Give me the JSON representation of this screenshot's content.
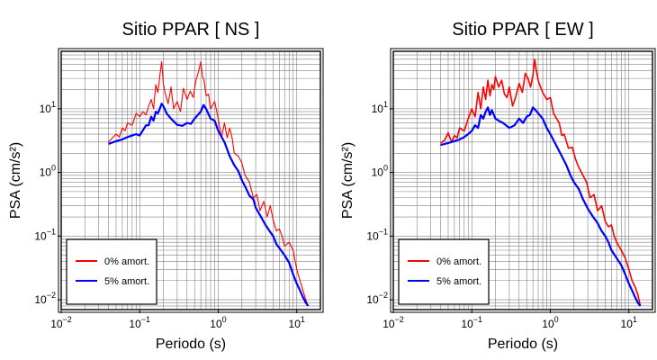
{
  "chart_data": [
    {
      "type": "line",
      "title": "Sitio PPAR [ NS ]",
      "xlabel": "Periodo (s)",
      "ylabel": "PSA (cm/s²)",
      "xscale": "log",
      "yscale": "log",
      "xlim": [
        0.01,
        20
      ],
      "ylim": [
        0.007,
        80
      ],
      "xticks": [
        {
          "base": "10",
          "exp": "−2",
          "v": 0.01
        },
        {
          "base": "10",
          "exp": "−1",
          "v": 0.1
        },
        {
          "base": "10",
          "exp": "0",
          "v": 1
        },
        {
          "base": "10",
          "exp": "1",
          "v": 10
        }
      ],
      "yticks": [
        {
          "base": "10",
          "exp": "−2",
          "v": 0.01
        },
        {
          "base": "10",
          "exp": "−1",
          "v": 0.1
        },
        {
          "base": "10",
          "exp": "0",
          "v": 1
        },
        {
          "base": "10",
          "exp": "1",
          "v": 10
        }
      ],
      "grid": true,
      "legend_position": "bottom-left",
      "series": [
        {
          "name": "0% amort.",
          "color": "#ff0000",
          "x": [
            0.04,
            0.05,
            0.055,
            0.06,
            0.065,
            0.07,
            0.08,
            0.09,
            0.1,
            0.11,
            0.12,
            0.13,
            0.14,
            0.15,
            0.16,
            0.17,
            0.18,
            0.19,
            0.2,
            0.21,
            0.23,
            0.25,
            0.27,
            0.3,
            0.33,
            0.36,
            0.4,
            0.44,
            0.48,
            0.52,
            0.56,
            0.6,
            0.63,
            0.66,
            0.7,
            0.75,
            0.8,
            0.9,
            1.0,
            1.1,
            1.2,
            1.3,
            1.4,
            1.5,
            1.6,
            1.8,
            2.0,
            2.2,
            2.5,
            2.8,
            3.1,
            3.4,
            3.8,
            4.2,
            4.6,
            5.0,
            5.5,
            6.0,
            6.5,
            7.0,
            8.0,
            9.0,
            10.0,
            11.0,
            12.0,
            13.0,
            14.0
          ],
          "y": [
            3.0,
            4.0,
            3.6,
            5.0,
            4.5,
            6.0,
            5.5,
            8.5,
            7.5,
            9.0,
            8.0,
            11.0,
            14.0,
            10.0,
            24.0,
            18.0,
            32.0,
            55.0,
            25.0,
            18.0,
            12.0,
            22.0,
            10.0,
            13.0,
            9.0,
            21.0,
            14.0,
            19.0,
            15.0,
            28.0,
            38.0,
            55.0,
            32.0,
            28.0,
            16.0,
            17.0,
            10.0,
            13.0,
            7.0,
            3.5,
            6.0,
            3.5,
            5.0,
            3.5,
            2.0,
            1.8,
            1.4,
            0.9,
            0.7,
            0.4,
            0.45,
            0.25,
            0.35,
            0.2,
            0.3,
            0.18,
            0.12,
            0.13,
            0.1,
            0.07,
            0.08,
            0.06,
            0.03,
            0.02,
            0.014,
            0.01,
            0.008
          ]
        },
        {
          "name": "5% amort.",
          "color": "#0000ff",
          "x": [
            0.04,
            0.05,
            0.06,
            0.07,
            0.08,
            0.09,
            0.1,
            0.11,
            0.12,
            0.13,
            0.14,
            0.15,
            0.16,
            0.17,
            0.18,
            0.19,
            0.2,
            0.22,
            0.25,
            0.3,
            0.35,
            0.4,
            0.45,
            0.5,
            0.55,
            0.6,
            0.65,
            0.7,
            0.8,
            0.9,
            1.0,
            1.2,
            1.4,
            1.6,
            1.8,
            2.0,
            2.2,
            2.5,
            2.8,
            3.0,
            3.5,
            4.0,
            4.5,
            5.0,
            5.5,
            6.0,
            7.0,
            8.0,
            9.0,
            10.0,
            11.0,
            12.0,
            13.0,
            14.0
          ],
          "y": [
            2.8,
            3.1,
            3.3,
            3.6,
            3.8,
            4.0,
            3.8,
            4.6,
            5.5,
            5.5,
            7.5,
            6.5,
            9.0,
            8.5,
            10.0,
            12.0,
            11.0,
            8.5,
            7.0,
            5.6,
            5.4,
            6.0,
            5.8,
            7.0,
            8.0,
            9.0,
            11.5,
            10.0,
            7.0,
            6.5,
            4.5,
            3.0,
            1.8,
            1.3,
            1.05,
            0.75,
            0.6,
            0.43,
            0.38,
            0.28,
            0.2,
            0.15,
            0.12,
            0.1,
            0.075,
            0.065,
            0.05,
            0.038,
            0.025,
            0.018,
            0.014,
            0.011,
            0.009,
            0.008
          ]
        }
      ]
    },
    {
      "type": "line",
      "title": "Sitio PPAR [ EW ]",
      "xlabel": "Periodo (s)",
      "ylabel": "PSA (cm/s²)",
      "xscale": "log",
      "yscale": "log",
      "xlim": [
        0.01,
        20
      ],
      "ylim": [
        0.007,
        80
      ],
      "xticks": [
        {
          "base": "10",
          "exp": "−2",
          "v": 0.01
        },
        {
          "base": "10",
          "exp": "−1",
          "v": 0.1
        },
        {
          "base": "10",
          "exp": "0",
          "v": 1
        },
        {
          "base": "10",
          "exp": "1",
          "v": 10
        }
      ],
      "yticks": [
        {
          "base": "10",
          "exp": "−2",
          "v": 0.01
        },
        {
          "base": "10",
          "exp": "−1",
          "v": 0.1
        },
        {
          "base": "10",
          "exp": "0",
          "v": 1
        },
        {
          "base": "10",
          "exp": "1",
          "v": 10
        }
      ],
      "grid": true,
      "legend_position": "bottom-left",
      "series": [
        {
          "name": "0% amort.",
          "color": "#ff0000",
          "x": [
            0.04,
            0.045,
            0.05,
            0.055,
            0.06,
            0.065,
            0.07,
            0.08,
            0.09,
            0.1,
            0.11,
            0.12,
            0.13,
            0.14,
            0.15,
            0.16,
            0.17,
            0.18,
            0.19,
            0.2,
            0.22,
            0.24,
            0.26,
            0.28,
            0.3,
            0.33,
            0.36,
            0.4,
            0.44,
            0.48,
            0.52,
            0.56,
            0.6,
            0.63,
            0.66,
            0.7,
            0.75,
            0.8,
            0.9,
            1.0,
            1.1,
            1.2,
            1.3,
            1.4,
            1.5,
            1.7,
            1.9,
            2.1,
            2.3,
            2.6,
            2.9,
            3.2,
            3.6,
            4.0,
            4.5,
            5.0,
            5.5,
            6.0,
            6.5,
            7.0,
            8.0,
            9.0,
            10.0,
            11.0,
            12.0,
            13.0,
            14.0
          ],
          "y": [
            2.9,
            3.2,
            4.2,
            3.0,
            3.8,
            3.5,
            5.0,
            4.5,
            7.0,
            10.0,
            7.5,
            18.0,
            10.0,
            22.0,
            14.0,
            28.0,
            16.0,
            24.0,
            20.0,
            32.0,
            22.0,
            28.0,
            17.0,
            15.0,
            22.0,
            11.0,
            15.0,
            25.0,
            18.0,
            36.0,
            30.0,
            22.0,
            33.0,
            60.0,
            42.0,
            28.0,
            22.0,
            18.0,
            14.0,
            15.0,
            8.5,
            7.0,
            6.0,
            3.8,
            4.0,
            2.4,
            2.5,
            1.6,
            1.2,
            0.9,
            0.7,
            0.4,
            0.45,
            0.25,
            0.3,
            0.17,
            0.14,
            0.15,
            0.1,
            0.08,
            0.06,
            0.045,
            0.03,
            0.02,
            0.016,
            0.012,
            0.008
          ]
        },
        {
          "name": "5% amort.",
          "color": "#0000ff",
          "x": [
            0.04,
            0.05,
            0.06,
            0.07,
            0.08,
            0.09,
            0.1,
            0.11,
            0.12,
            0.13,
            0.14,
            0.15,
            0.16,
            0.17,
            0.18,
            0.2,
            0.22,
            0.25,
            0.3,
            0.35,
            0.4,
            0.45,
            0.5,
            0.55,
            0.6,
            0.65,
            0.7,
            0.8,
            0.9,
            1.0,
            1.2,
            1.4,
            1.6,
            1.8,
            2.0,
            2.3,
            2.6,
            3.0,
            3.5,
            4.0,
            4.5,
            5.0,
            5.5,
            6.0,
            7.0,
            8.0,
            9.0,
            10.0,
            11.0,
            12.0,
            13.0,
            14.0
          ],
          "y": [
            2.7,
            2.9,
            3.1,
            3.3,
            3.6,
            4.0,
            4.5,
            5.5,
            5.0,
            8.0,
            7.0,
            9.0,
            10.5,
            8.0,
            9.5,
            7.0,
            6.5,
            6.0,
            5.0,
            5.5,
            7.0,
            6.0,
            7.5,
            8.0,
            10.5,
            9.5,
            8.5,
            7.0,
            5.0,
            4.0,
            2.6,
            1.8,
            1.3,
            0.9,
            0.7,
            0.55,
            0.38,
            0.27,
            0.2,
            0.16,
            0.12,
            0.1,
            0.08,
            0.06,
            0.045,
            0.035,
            0.025,
            0.018,
            0.014,
            0.011,
            0.009,
            0.008
          ]
        }
      ]
    }
  ]
}
